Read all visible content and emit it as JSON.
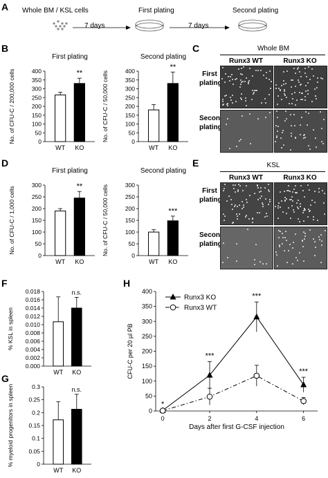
{
  "panel_a": {
    "letter": "A",
    "step1": "Whole BM / KSL cells",
    "step2": "First plating",
    "step3": "Second plating",
    "arrow1": "7 days",
    "arrow2": "7 days"
  },
  "panels": {
    "b": "B",
    "c": "C",
    "d": "D",
    "e": "E",
    "f": "F",
    "g": "G",
    "h": "H"
  },
  "panel_c": {
    "header": "Whole BM",
    "col1": "Runx3 WT",
    "col2": "Runx3 KO",
    "row1": "First plating",
    "row2": "Second plating"
  },
  "panel_e": {
    "header": "KSL",
    "col1": "Runx3 WT",
    "col2": "Runx3 KO",
    "row1": "First plating",
    "row2": "Second plating"
  },
  "chart_data": [
    {
      "id": "B1",
      "type": "bar",
      "title": "First plating",
      "ylabel": "No. of CFU-C / 200,000 cells",
      "categories": [
        "WT",
        "KO"
      ],
      "values": [
        265,
        330
      ],
      "errors": [
        15,
        30
      ],
      "fills": [
        "#ffffff",
        "#000000"
      ],
      "significance": "**",
      "ylim": [
        0,
        400
      ],
      "yticks": [
        0,
        50,
        100,
        150,
        200,
        250,
        300,
        350,
        400
      ]
    },
    {
      "id": "B2",
      "type": "bar",
      "title": "Second plating",
      "ylabel": "No. of CFU-C / 50,000 cells",
      "categories": [
        "WT",
        "KO"
      ],
      "values": [
        180,
        330
      ],
      "errors": [
        30,
        65
      ],
      "fills": [
        "#ffffff",
        "#000000"
      ],
      "significance": "**",
      "ylim": [
        0,
        400
      ],
      "yticks": [
        0,
        50,
        100,
        150,
        200,
        250,
        300,
        350,
        400
      ]
    },
    {
      "id": "D1",
      "type": "bar",
      "title": "First plating",
      "ylabel": "No. of CFU-C / 1,000 cells",
      "categories": [
        "WT",
        "KO"
      ],
      "values": [
        190,
        245
      ],
      "errors": [
        10,
        28
      ],
      "fills": [
        "#ffffff",
        "#000000"
      ],
      "significance": "**",
      "ylim": [
        0,
        300
      ],
      "yticks": [
        0,
        50,
        100,
        150,
        200,
        250,
        300
      ]
    },
    {
      "id": "D2",
      "type": "bar",
      "title": "Second plating",
      "ylabel": "No. of CFU-C / 50,000 cells",
      "categories": [
        "WT",
        "KO"
      ],
      "values": [
        100,
        148
      ],
      "errors": [
        10,
        20
      ],
      "fills": [
        "#ffffff",
        "#000000"
      ],
      "significance": "***",
      "ylim": [
        0,
        300
      ],
      "yticks": [
        0,
        50,
        100,
        150,
        200,
        250,
        300
      ]
    },
    {
      "id": "F",
      "type": "bar",
      "title": "",
      "ylabel": "% KSL in spleen",
      "categories": [
        "WT",
        "KO"
      ],
      "values": [
        0.0107,
        0.014
      ],
      "errors": [
        0.006,
        0.0026
      ],
      "fills": [
        "#ffffff",
        "#000000"
      ],
      "significance": "n.s.",
      "ylim": [
        0,
        0.018
      ],
      "yticks": [
        0.0,
        0.002,
        0.004,
        0.006,
        0.008,
        0.01,
        0.012,
        0.014,
        0.016,
        0.018
      ],
      "ytick_labels": [
        "0.000",
        "0.002",
        "0.004",
        "0.006",
        "0.008",
        "0.010",
        "0.012",
        "0.014",
        "0.016",
        "0.018"
      ]
    },
    {
      "id": "G",
      "type": "bar",
      "title": "",
      "ylabel": "% myeloid progenitors in spleen",
      "categories": [
        "WT",
        "KO"
      ],
      "values": [
        0.172,
        0.213
      ],
      "errors": [
        0.07,
        0.058
      ],
      "fills": [
        "#ffffff",
        "#000000"
      ],
      "significance": "n.s.",
      "ylim": [
        0,
        0.3
      ],
      "yticks": [
        0,
        0.05,
        0.1,
        0.15,
        0.2,
        0.25,
        0.3
      ],
      "ytick_labels": [
        "0",
        "0.05",
        "0.1",
        "0.15",
        "0.2",
        "0.25",
        "0.3"
      ]
    },
    {
      "id": "H",
      "type": "line",
      "xlabel": "Days after first G-CSF injection",
      "ylabel": "CFU-C per 20 µl PB",
      "x": [
        0,
        2,
        4,
        6
      ],
      "xlim": [
        -0.3,
        6.6
      ],
      "ylim": [
        0,
        400
      ],
      "yticks": [
        0,
        50,
        100,
        150,
        200,
        250,
        300,
        350,
        400
      ],
      "series": [
        {
          "name": "Runx3 KO",
          "marker": "triangle",
          "dash": "solid",
          "values": [
            2,
            120,
            315,
            88
          ],
          "errors": [
            2,
            45,
            50,
            25
          ]
        },
        {
          "name": "Runx3 WT",
          "marker": "circle",
          "dash": "dashdot",
          "values": [
            1,
            48,
            118,
            33
          ],
          "errors": [
            1,
            28,
            35,
            12
          ]
        }
      ],
      "annotations": [
        {
          "x": 0,
          "text": "*"
        },
        {
          "x": 2,
          "text": "***"
        },
        {
          "x": 4,
          "text": "***"
        },
        {
          "x": 6,
          "text": "***"
        }
      ],
      "legend": "top-left"
    }
  ]
}
